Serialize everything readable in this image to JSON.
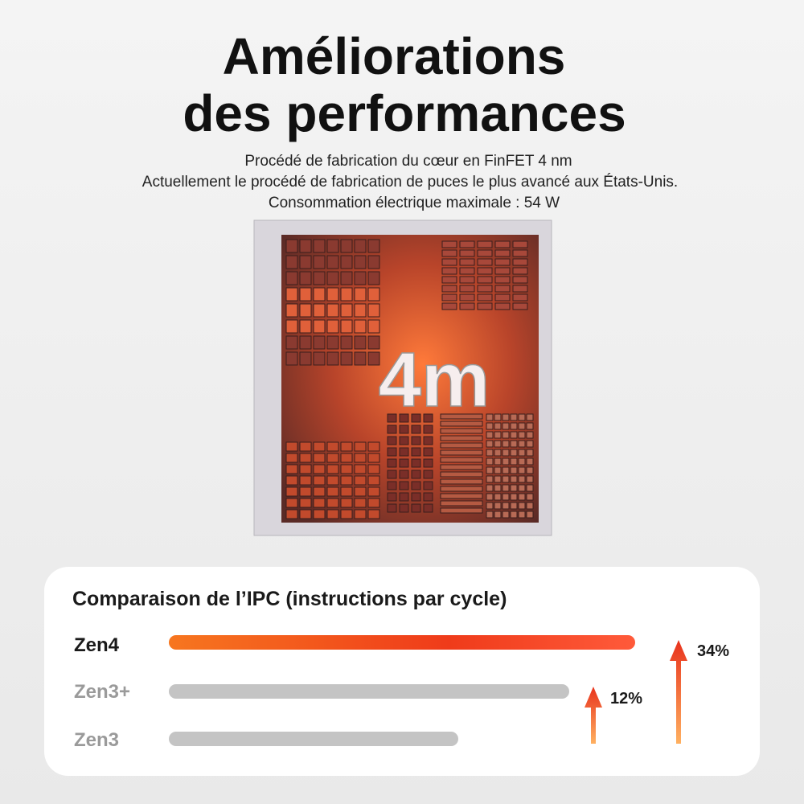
{
  "header": {
    "title_line1": "Améliorations",
    "title_line2": "des performances",
    "lines": [
      "Procédé de fabrication du cœur en FinFET 4 nm",
      "Actuellement le procédé de fabrication de puces le plus avancé aux États-Unis.",
      "Consommation électrique maximale : 54 W"
    ]
  },
  "chip": {
    "label": "4m"
  },
  "comparison": {
    "title": "Comparaison de l’IPC (instructions par cycle)",
    "rows": [
      {
        "name": "Zen4"
      },
      {
        "name": "Zen3+"
      },
      {
        "name": "Zen3"
      }
    ],
    "gains": [
      "34%",
      "12%"
    ]
  }
}
